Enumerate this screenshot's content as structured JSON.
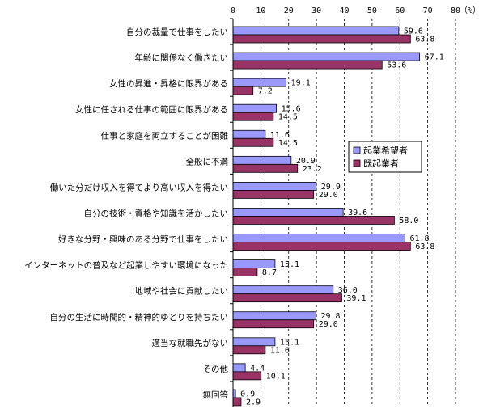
{
  "chart_data": {
    "type": "bar",
    "orientation": "horizontal",
    "unit_label": "（%）",
    "xlim": [
      0,
      80
    ],
    "x_ticks": [
      0,
      10,
      20,
      30,
      40,
      50,
      60,
      70,
      80
    ],
    "grid": "vertical-dashed",
    "legend_position": "right-middle",
    "categories": [
      "自分の裁量で仕事をしたい",
      "年齢に関係なく働きたい",
      "女性の昇進・昇格に限界がある",
      "女性に任される仕事の範囲に限界がある",
      "仕事と家庭を両立することが困難",
      "全般に不満",
      "働いた分だけ収入を得てより高い収入を得たい",
      "自分の技術・資格や知識を活かしたい",
      "好きな分野・興味のある分野で仕事をしたい",
      "インターネットの普及など起業しやすい環境になった",
      "地域や社会に貢献したい",
      "自分の生活に時間的・精神的ゆとりを持ちたい",
      "適当な就職先がない",
      "その他",
      "無回答"
    ],
    "series": [
      {
        "name": "起業希望者",
        "color": "#9999FF",
        "values": [
          59.6,
          67.1,
          19.1,
          15.6,
          11.6,
          20.9,
          29.9,
          39.6,
          61.8,
          15.1,
          36.0,
          29.8,
          15.1,
          4.4,
          0.9
        ],
        "labels": [
          "59.6",
          "67.1",
          "19.1",
          "15.6",
          "11.6",
          "20.9",
          "29.9",
          "39.6",
          "61.8",
          "15.1",
          "36.0",
          "29.8",
          "15.1",
          "4.4",
          "0.9"
        ]
      },
      {
        "name": "既起業者",
        "color": "#993366",
        "values": [
          63.8,
          53.6,
          7.2,
          14.5,
          14.5,
          23.2,
          29.0,
          58.0,
          63.8,
          8.7,
          39.1,
          29.0,
          11.6,
          10.1,
          2.9
        ],
        "labels": [
          "63.8",
          "53.6",
          "7.2",
          "14.5",
          "14.5",
          "23.2",
          "29.0",
          "58.0",
          "63.8",
          "8.7",
          "39.1",
          "29.0",
          "11.6",
          "10.1",
          "2.9"
        ]
      }
    ]
  }
}
